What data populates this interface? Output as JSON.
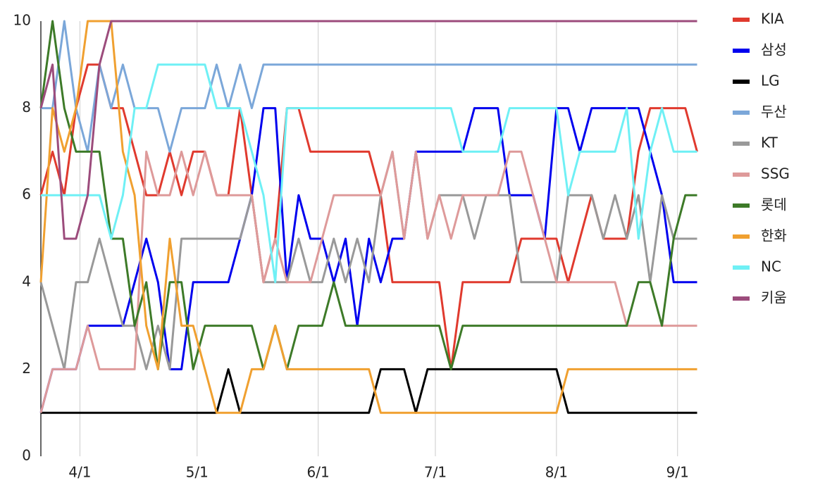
{
  "chart_data": {
    "type": "line",
    "x": [
      0,
      3,
      6,
      9,
      12,
      15,
      18,
      21,
      24,
      27,
      30,
      33,
      36,
      39,
      42,
      45,
      48,
      51,
      54,
      57,
      60,
      63,
      66,
      69,
      72,
      75,
      78,
      81,
      84,
      87,
      90,
      93,
      96,
      99,
      102,
      105,
      108,
      111,
      114,
      117,
      120,
      123,
      126,
      129,
      132,
      135,
      138,
      141,
      144,
      147,
      150,
      153,
      156,
      159,
      162,
      165,
      168
    ],
    "xlim": [
      0,
      169
    ],
    "xticks": [
      {
        "value": 10,
        "label": "4/1"
      },
      {
        "value": 40,
        "label": "5/1"
      },
      {
        "value": 71,
        "label": "6/1"
      },
      {
        "value": 101,
        "label": "7/1"
      },
      {
        "value": 132,
        "label": "8/1"
      },
      {
        "value": 163,
        "label": "9/1"
      }
    ],
    "ylim": [
      0,
      10
    ],
    "yticks": [
      0,
      2,
      4,
      6,
      8,
      10
    ],
    "grid": "x",
    "legend": "right",
    "series": [
      {
        "name": "KIA",
        "color": "#e03a2e",
        "values": [
          6,
          7,
          6,
          8,
          9,
          9,
          8,
          8,
          7,
          6,
          6,
          7,
          6,
          7,
          7,
          6,
          6,
          8,
          6,
          4,
          5,
          8,
          8,
          7,
          7,
          7,
          7,
          7,
          7,
          6,
          4,
          4,
          4,
          4,
          4,
          2,
          4,
          4,
          4,
          4,
          4,
          5,
          5,
          5,
          5,
          4,
          5,
          6,
          5,
          5,
          5,
          7,
          8,
          8,
          8,
          8,
          7
        ]
      },
      {
        "name": "삼성",
        "color": "#0000ee",
        "values": [
          1,
          2,
          2,
          2,
          3,
          3,
          3,
          3,
          4,
          5,
          4,
          2,
          2,
          4,
          4,
          4,
          4,
          5,
          6,
          8,
          8,
          4,
          6,
          5,
          5,
          4,
          5,
          3,
          5,
          4,
          5,
          5,
          7,
          7,
          7,
          7,
          7,
          8,
          8,
          8,
          6,
          6,
          6,
          5,
          8,
          8,
          7,
          8,
          8,
          8,
          8,
          8,
          7,
          6,
          4,
          4,
          4
        ]
      },
      {
        "name": "LG",
        "color": "#000000",
        "values": [
          1,
          1,
          1,
          1,
          1,
          1,
          1,
          1,
          1,
          1,
          1,
          1,
          1,
          1,
          1,
          1,
          2,
          1,
          1,
          1,
          1,
          1,
          1,
          1,
          1,
          1,
          1,
          1,
          1,
          2,
          2,
          2,
          1,
          2,
          2,
          2,
          2,
          2,
          2,
          2,
          2,
          2,
          2,
          2,
          2,
          1,
          1,
          1,
          1,
          1,
          1,
          1,
          1,
          1,
          1,
          1,
          1
        ]
      },
      {
        "name": "두산",
        "color": "#7ba7d9",
        "values": [
          8,
          8,
          10,
          8,
          7,
          9,
          8,
          9,
          8,
          8,
          8,
          7,
          8,
          8,
          8,
          9,
          8,
          9,
          8,
          9,
          9,
          9,
          9,
          9,
          9,
          9,
          9,
          9,
          9,
          9,
          9,
          9,
          9,
          9,
          9,
          9,
          9,
          9,
          9,
          9,
          9,
          9,
          9,
          9,
          9,
          9,
          9,
          9,
          9,
          9,
          9,
          9,
          9,
          9,
          9,
          9,
          9
        ]
      },
      {
        "name": "KT",
        "color": "#999999",
        "values": [
          4,
          3,
          2,
          4,
          4,
          5,
          4,
          3,
          3,
          2,
          3,
          2,
          5,
          5,
          5,
          5,
          5,
          5,
          6,
          4,
          4,
          4,
          5,
          4,
          4,
          5,
          4,
          5,
          4,
          6,
          7,
          5,
          7,
          5,
          6,
          6,
          6,
          5,
          6,
          6,
          6,
          4,
          4,
          4,
          4,
          6,
          6,
          6,
          5,
          6,
          5,
          6,
          4,
          6,
          5,
          5,
          5
        ]
      },
      {
        "name": "SSG",
        "color": "#de9a9a",
        "values": [
          1,
          2,
          2,
          2,
          3,
          2,
          2,
          2,
          2,
          7,
          6,
          6,
          7,
          6,
          7,
          6,
          6,
          6,
          6,
          4,
          5,
          4,
          4,
          4,
          5,
          6,
          6,
          6,
          6,
          6,
          7,
          5,
          7,
          5,
          6,
          5,
          6,
          6,
          6,
          6,
          7,
          7,
          6,
          5,
          4,
          4,
          4,
          4,
          4,
          4,
          3,
          3,
          3,
          3,
          3,
          3,
          3
        ]
      },
      {
        "name": "롯데",
        "color": "#3d7a28",
        "values": [
          8,
          10,
          8,
          7,
          7,
          7,
          5,
          5,
          3,
          4,
          2,
          4,
          4,
          2,
          3,
          3,
          3,
          3,
          3,
          2,
          3,
          2,
          3,
          3,
          3,
          4,
          3,
          3,
          3,
          3,
          3,
          3,
          3,
          3,
          3,
          2,
          3,
          3,
          3,
          3,
          3,
          3,
          3,
          3,
          3,
          3,
          3,
          3,
          3,
          3,
          3,
          4,
          4,
          3,
          5,
          6,
          6
        ]
      },
      {
        "name": "한화",
        "color": "#f0a030",
        "values": [
          4,
          8,
          7,
          8,
          10,
          10,
          10,
          7,
          6,
          3,
          2,
          5,
          3,
          3,
          2,
          1,
          1,
          1,
          2,
          2,
          3,
          2,
          2,
          2,
          2,
          2,
          2,
          2,
          2,
          1,
          1,
          1,
          1,
          1,
          1,
          1,
          1,
          1,
          1,
          1,
          1,
          1,
          1,
          1,
          1,
          2,
          2,
          2,
          2,
          2,
          2,
          2,
          2,
          2,
          2,
          2,
          2
        ]
      },
      {
        "name": "NC",
        "color": "#6ff0f5",
        "values": [
          6,
          6,
          6,
          6,
          6,
          6,
          5,
          6,
          8,
          8,
          9,
          9,
          9,
          9,
          9,
          8,
          8,
          8,
          7,
          6,
          4,
          8,
          8,
          8,
          8,
          8,
          8,
          8,
          8,
          8,
          8,
          8,
          8,
          8,
          8,
          8,
          7,
          7,
          7,
          7,
          8,
          8,
          8,
          8,
          8,
          6,
          7,
          7,
          7,
          7,
          8,
          5,
          7,
          8,
          7,
          7,
          7
        ]
      },
      {
        "name": "키움",
        "color": "#9c4c7c",
        "values": [
          8,
          9,
          5,
          5,
          6,
          9,
          10,
          10,
          10,
          10,
          10,
          10,
          10,
          10,
          10,
          10,
          10,
          10,
          10,
          10,
          10,
          10,
          10,
          10,
          10,
          10,
          10,
          10,
          10,
          10,
          10,
          10,
          10,
          10,
          10,
          10,
          10,
          10,
          10,
          10,
          10,
          10,
          10,
          10,
          10,
          10,
          10,
          10,
          10,
          10,
          10,
          10,
          10,
          10,
          10,
          10,
          10
        ]
      }
    ]
  }
}
